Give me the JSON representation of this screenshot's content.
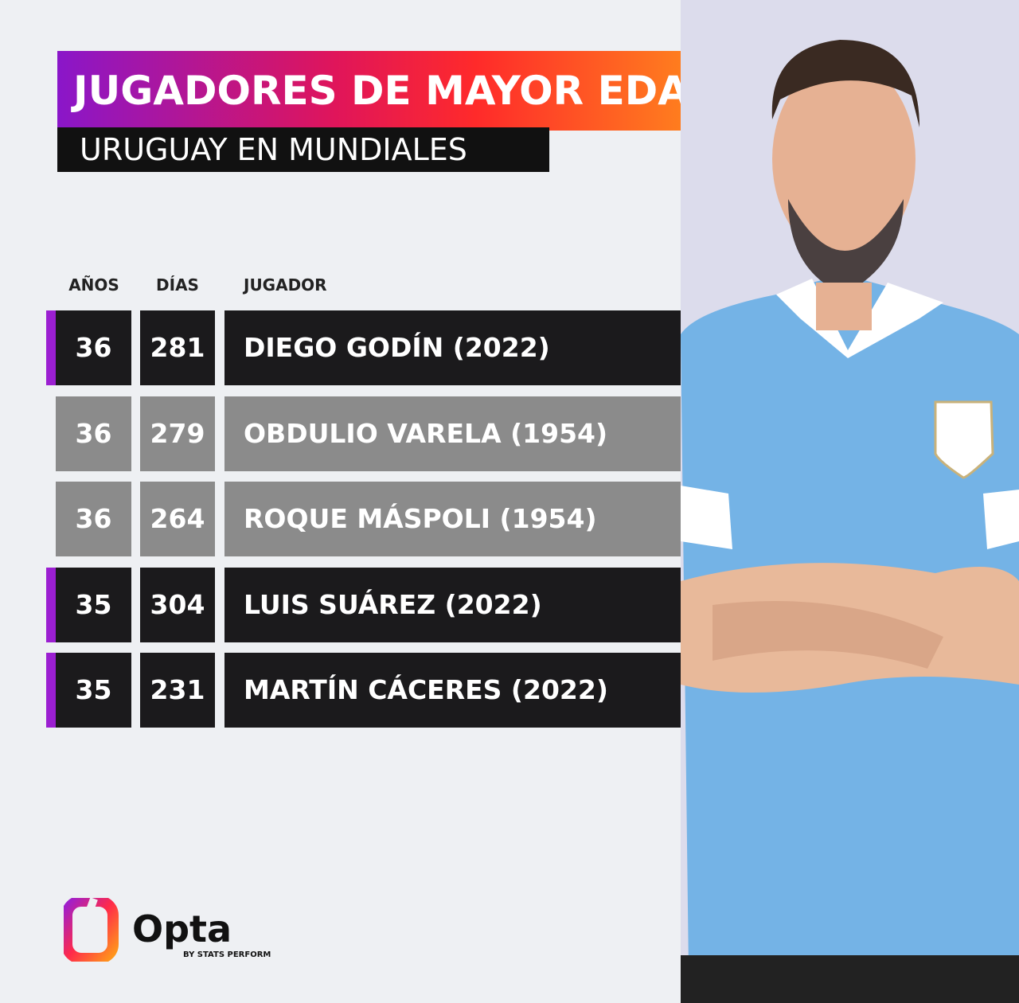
{
  "header": {
    "title": "JUGADORES DE MAYOR EDAD",
    "subtitle": "URUGUAY EN MUNDIALES"
  },
  "table": {
    "columns": [
      "AÑOS",
      "DÍAS",
      "JUGADOR"
    ],
    "rows": [
      {
        "years": 36,
        "days": 281,
        "player": "DIEGO GODÍN (2022)",
        "highlight": true
      },
      {
        "years": 36,
        "days": 279,
        "player": "OBDULIO VARELA (1954)",
        "highlight": false
      },
      {
        "years": 36,
        "days": 264,
        "player": "ROQUE MÁSPOLI (1954)",
        "highlight": false
      },
      {
        "years": 35,
        "days": 304,
        "player": "LUIS SUÁREZ (2022)",
        "highlight": true
      },
      {
        "years": 35,
        "days": 231,
        "player": "MARTÍN CÁCERES (2022)",
        "highlight": true
      }
    ]
  },
  "logo": {
    "name": "Opta",
    "tagline": "BY STATS PERFORM"
  }
}
